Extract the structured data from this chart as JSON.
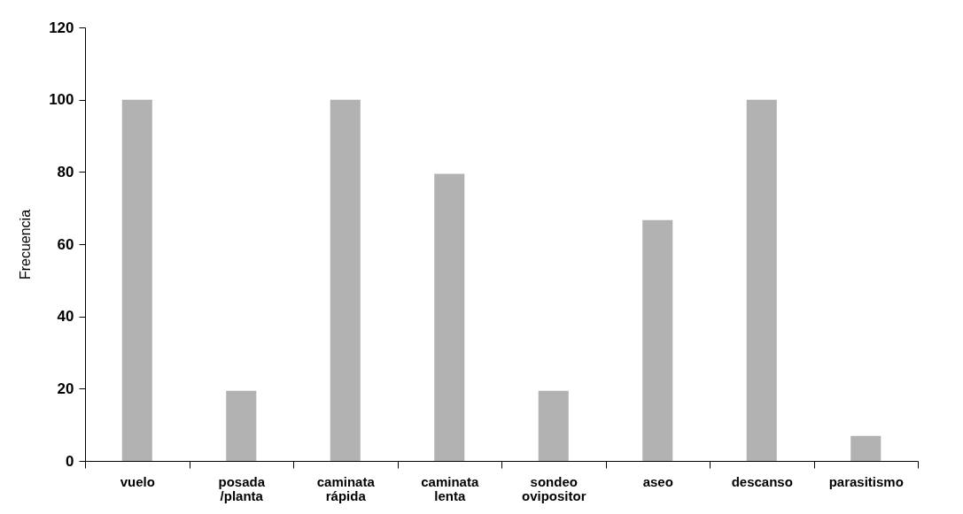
{
  "chart_data": {
    "type": "bar",
    "ylabel": "Frecuencia",
    "categories": [
      "vuelo",
      "posada /planta",
      "caminata rápida",
      "caminata lenta",
      "sondeo ovipositor",
      "aseo",
      "descanso",
      "parasitismo"
    ],
    "values": [
      100,
      19.4,
      100,
      79.5,
      19.4,
      66.7,
      100,
      6.9
    ],
    "color": "#b2b2b2",
    "ylim": [
      0,
      120
    ],
    "yticks": [
      0,
      20,
      40,
      60,
      80,
      100,
      120
    ],
    "grid": false
  }
}
